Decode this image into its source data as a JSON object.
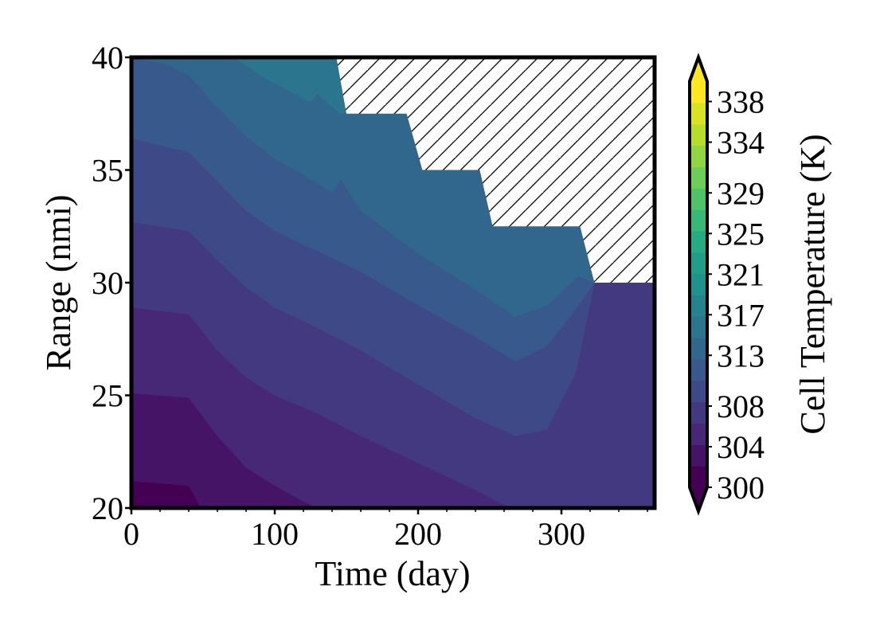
{
  "chart_data": {
    "type": "heatmap",
    "subtype": "filled-contour",
    "xlabel": "Time (day)",
    "ylabel": "Range (nmi)",
    "xlim": [
      0,
      365
    ],
    "ylim": [
      20,
      40
    ],
    "xticks": [
      0,
      100,
      200,
      300
    ],
    "yticks": [
      20,
      25,
      30,
      35,
      40
    ],
    "colorbar": {
      "label": "Cell Temperature (K)",
      "range": [
        300,
        340
      ],
      "extend": "both",
      "levels": [
        300,
        302,
        304,
        306,
        308,
        310,
        313,
        315,
        317,
        319,
        321,
        323,
        325,
        327,
        329,
        331,
        334,
        336,
        338,
        340
      ],
      "tick_values": [
        300,
        304,
        308,
        313,
        317,
        321,
        325,
        329,
        334,
        338
      ],
      "tick_labels": [
        "300",
        "304",
        "308",
        "313",
        "317",
        "321",
        "325",
        "329",
        "334",
        "338"
      ],
      "colormap": "viridis"
    },
    "hatched_region": {
      "meaning": "no data (out of range)",
      "boundary": [
        [
          143,
          40
        ],
        [
          150,
          37.5
        ],
        [
          192,
          37.5
        ],
        [
          203,
          35
        ],
        [
          243,
          35
        ],
        [
          252,
          32.5
        ],
        [
          313,
          32.5
        ],
        [
          323,
          30
        ],
        [
          365,
          30
        ]
      ]
    },
    "contour_lines": [
      {
        "level": 302,
        "points": [
          [
            0,
            21.2
          ],
          [
            40,
            21.0
          ],
          [
            47,
            20.2
          ],
          [
            48,
            20
          ]
        ]
      },
      {
        "level": 304,
        "points": [
          [
            0,
            25.1
          ],
          [
            40,
            24.9
          ],
          [
            60,
            23.2
          ],
          [
            80,
            21.8
          ],
          [
            100,
            21.0
          ],
          [
            120,
            20.3
          ],
          [
            130,
            20.0
          ]
        ]
      },
      {
        "level": 306,
        "points": [
          [
            0,
            28.9
          ],
          [
            40,
            28.6
          ],
          [
            60,
            27.0
          ],
          [
            80,
            25.8
          ],
          [
            100,
            25.0
          ],
          [
            130,
            24.2
          ],
          [
            160,
            23.2
          ],
          [
            200,
            22.0
          ],
          [
            240,
            20.8
          ],
          [
            265,
            20.0
          ]
        ]
      },
      {
        "level": 308,
        "points": [
          [
            0,
            32.7
          ],
          [
            40,
            32.3
          ],
          [
            60,
            31.0
          ],
          [
            80,
            29.8
          ],
          [
            100,
            28.9
          ],
          [
            130,
            28.0
          ],
          [
            160,
            27.0
          ],
          [
            200,
            25.5
          ],
          [
            240,
            24.0
          ],
          [
            268,
            23.2
          ],
          [
            290,
            23.5
          ],
          [
            310,
            26.0
          ],
          [
            323,
            30.0
          ]
        ]
      },
      {
        "level": 310,
        "points": [
          [
            0,
            36.4
          ],
          [
            40,
            35.8
          ],
          [
            60,
            34.5
          ],
          [
            80,
            33.2
          ],
          [
            100,
            32.3
          ],
          [
            130,
            31.4
          ],
          [
            160,
            30.5
          ],
          [
            200,
            29.0
          ],
          [
            240,
            27.6
          ],
          [
            268,
            26.5
          ],
          [
            290,
            27.2
          ],
          [
            312,
            29.0
          ],
          [
            323,
            30.0
          ]
        ]
      },
      {
        "level": 313,
        "points": [
          [
            0,
            40.0
          ],
          [
            25,
            39.7
          ],
          [
            40,
            39.2
          ],
          [
            60,
            37.8
          ],
          [
            80,
            36.5
          ],
          [
            100,
            35.5
          ],
          [
            120,
            34.8
          ],
          [
            140,
            34.0
          ],
          [
            146,
            34.6
          ],
          [
            160,
            33.2
          ],
          [
            200,
            31.3
          ],
          [
            240,
            29.7
          ],
          [
            268,
            28.5
          ],
          [
            290,
            29.0
          ],
          [
            312,
            30.3
          ],
          [
            323,
            30.0
          ]
        ]
      },
      {
        "level": 315,
        "points": [
          [
            72,
            40.0
          ],
          [
            90,
            39.2
          ],
          [
            110,
            38.5
          ],
          [
            125,
            38.0
          ],
          [
            130,
            38.4
          ],
          [
            140,
            37.8
          ],
          [
            146,
            37.5
          ]
        ]
      }
    ]
  }
}
